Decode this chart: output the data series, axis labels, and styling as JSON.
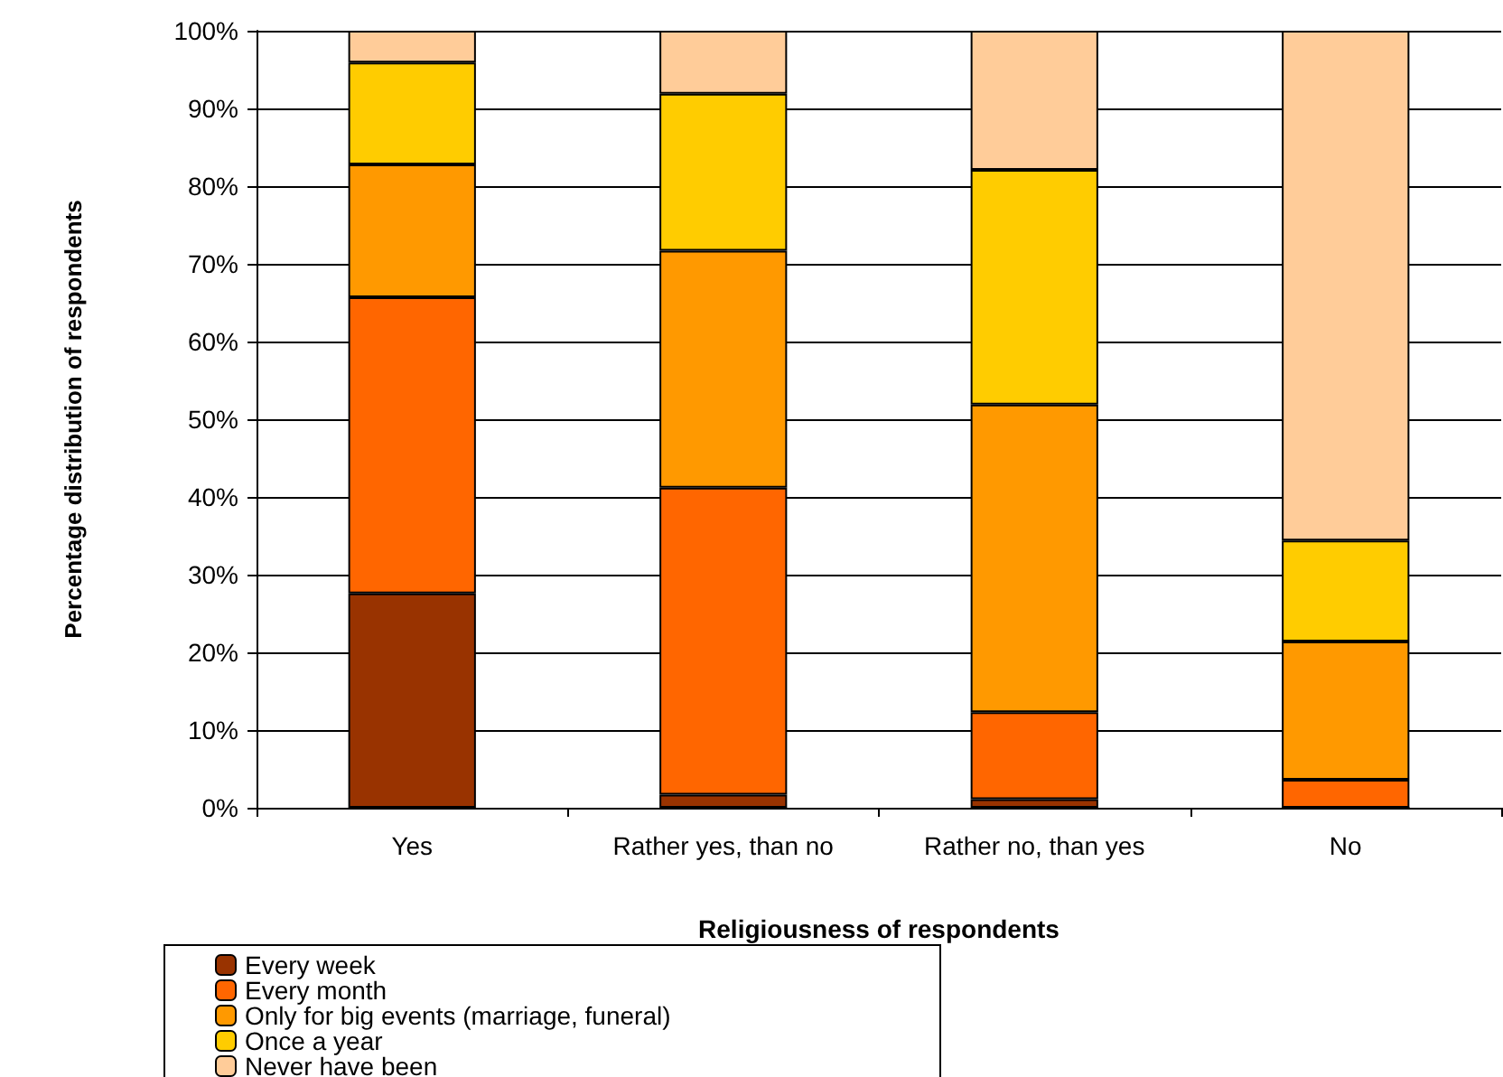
{
  "chart_data": {
    "type": "bar",
    "stacked": true,
    "xlabel": "Religiousness of respondents",
    "ylabel": "Percentage distribution of respondents",
    "categories": [
      "Yes",
      "Rather yes, than no",
      "Rather no, than yes",
      "No"
    ],
    "series": [
      {
        "name": "Every week",
        "color": "#993300",
        "values": [
          27.6,
          1.7,
          1.1,
          0
        ]
      },
      {
        "name": "Every month",
        "color": "#ff6600",
        "values": [
          38.1,
          39.5,
          11.2,
          3.6
        ]
      },
      {
        "name": "Only for big events (marriage, funeral)",
        "color": "#ff9900",
        "values": [
          17.1,
          30.5,
          39.6,
          17.8
        ]
      },
      {
        "name": "Once a year",
        "color": "#ffcc00",
        "values": [
          13.1,
          20.2,
          30.2,
          13.0
        ]
      },
      {
        "name": "Never have been",
        "color": "#ffcc99",
        "values": [
          4.1,
          8.1,
          17.9,
          65.6
        ]
      }
    ],
    "ylim": [
      0,
      100
    ],
    "yticks": [
      {
        "value": 0,
        "label": "0%"
      },
      {
        "value": 10,
        "label": "10%"
      },
      {
        "value": 20,
        "label": "20%"
      },
      {
        "value": 30,
        "label": "30%"
      },
      {
        "value": 40,
        "label": "40%"
      },
      {
        "value": 50,
        "label": "50%"
      },
      {
        "value": 60,
        "label": "60%"
      },
      {
        "value": 70,
        "label": "70%"
      },
      {
        "value": 80,
        "label": "80%"
      },
      {
        "value": 90,
        "label": "90%"
      },
      {
        "value": 100,
        "label": "100%"
      }
    ],
    "grid": "y",
    "legend": "bottom"
  }
}
